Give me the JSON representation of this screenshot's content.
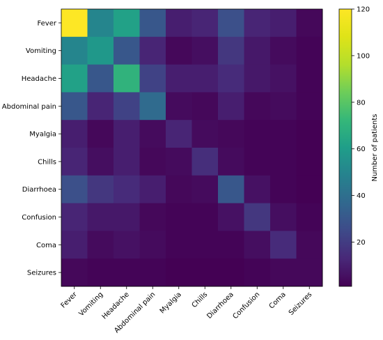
{
  "chart_data": {
    "type": "heatmap",
    "title": "",
    "xlabel": "",
    "ylabel": "",
    "rows": [
      "Fever",
      "Vomiting",
      "Headache",
      "Abdominal pain",
      "Myalgia",
      "Chills",
      "Diarrhoea",
      "Confusion",
      "Coma",
      "Seizures"
    ],
    "cols": [
      "Fever",
      "Vomiting",
      "Headache",
      "Abdominal pain",
      "Myalgia",
      "Chills",
      "Diarrhoea",
      "Confusion",
      "Coma",
      "Seizures"
    ],
    "values": [
      [
        120,
        50,
        62,
        30,
        10,
        12,
        27,
        12,
        10,
        3
      ],
      [
        50,
        58,
        30,
        12,
        3,
        5,
        18,
        8,
        4,
        2
      ],
      [
        62,
        30,
        70,
        22,
        10,
        10,
        14,
        8,
        6,
        2
      ],
      [
        30,
        12,
        22,
        38,
        4,
        3,
        10,
        3,
        4,
        2
      ],
      [
        10,
        3,
        10,
        4,
        12,
        4,
        3,
        2,
        2,
        1
      ],
      [
        12,
        5,
        10,
        3,
        4,
        15,
        4,
        2,
        2,
        1
      ],
      [
        27,
        18,
        14,
        10,
        3,
        4,
        30,
        6,
        2,
        1
      ],
      [
        12,
        8,
        8,
        3,
        2,
        2,
        6,
        18,
        5,
        2
      ],
      [
        10,
        4,
        6,
        4,
        2,
        2,
        2,
        5,
        14,
        3
      ],
      [
        3,
        2,
        2,
        2,
        1,
        1,
        1,
        2,
        3,
        3
      ]
    ],
    "colorbar": {
      "label": "Number of patients",
      "range": [
        1,
        120
      ],
      "ticks": [
        20,
        40,
        60,
        80,
        100,
        120
      ],
      "colormap": "viridis"
    }
  }
}
